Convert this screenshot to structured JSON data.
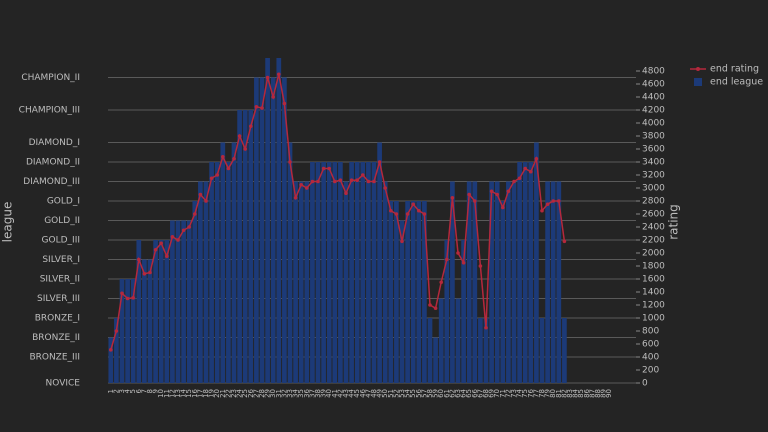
{
  "chart_data": {
    "type": "bar-line",
    "y_label": "league",
    "y2_label": "rating",
    "categories": [
      "1",
      "2",
      "3",
      "4",
      "5",
      "6",
      "7",
      "8",
      "9",
      "10",
      "11",
      "12",
      "13",
      "14",
      "15",
      "16",
      "17",
      "18",
      "19",
      "20",
      "21",
      "22",
      "23",
      "24",
      "25",
      "26",
      "27",
      "28",
      "29",
      "30",
      "31",
      "32",
      "33",
      "34",
      "35",
      "36",
      "37",
      "38",
      "39",
      "40",
      "41",
      "42",
      "43",
      "44",
      "45",
      "46",
      "47",
      "48",
      "49",
      "50",
      "51",
      "52",
      "53",
      "54",
      "55",
      "56",
      "57",
      "58",
      "59",
      "60",
      "61",
      "62",
      "63",
      "64",
      "65",
      "66",
      "67",
      "68",
      "69",
      "70",
      "71",
      "72",
      "73",
      "74",
      "75",
      "76",
      "77",
      "78",
      "79",
      "80",
      "81",
      "82",
      "83",
      "84",
      "85",
      "86",
      "87",
      "88",
      "89",
      "90"
    ],
    "series": [
      {
        "name": "end league",
        "kind": "bar",
        "color": "#1c3a78",
        "axis": "y",
        "values": [
          700,
          1000,
          1600,
          1600,
          1600,
          2200,
          1900,
          1900,
          2200,
          2200,
          2200,
          2500,
          2500,
          2500,
          2500,
          2800,
          3100,
          3100,
          3400,
          3400,
          3700,
          3400,
          3700,
          4200,
          4200,
          4200,
          4700,
          4700,
          5000,
          4700,
          5000,
          4700,
          3700,
          3100,
          3100,
          3100,
          3400,
          3400,
          3400,
          3400,
          3400,
          3400,
          3100,
          3400,
          3400,
          3400,
          3400,
          3400,
          3700,
          3100,
          2800,
          2800,
          2500,
          2800,
          2800,
          2800,
          2800,
          1000,
          700,
          1300,
          2200,
          3100,
          1300,
          2200,
          3100,
          3100,
          1000,
          1000,
          3100,
          3100,
          2800,
          3100,
          3100,
          3400,
          3400,
          3400,
          3700,
          1000,
          3100,
          3100,
          3100,
          1000,
          null,
          null,
          null,
          null,
          null,
          null,
          null,
          null
        ]
      },
      {
        "name": "end rating",
        "kind": "line",
        "color": "#b5283c",
        "axis": "y2",
        "values": [
          510,
          800,
          1380,
          1300,
          1310,
          1900,
          1680,
          1700,
          2050,
          2150,
          1950,
          2250,
          2200,
          2350,
          2400,
          2600,
          2900,
          2800,
          3150,
          3200,
          3480,
          3300,
          3450,
          3800,
          3600,
          3950,
          4250,
          4230,
          4700,
          4400,
          4750,
          4300,
          3400,
          2850,
          3050,
          3000,
          3100,
          3100,
          3300,
          3300,
          3100,
          3120,
          2920,
          3120,
          3120,
          3200,
          3100,
          3100,
          3400,
          3000,
          2650,
          2600,
          2180,
          2600,
          2750,
          2650,
          2600,
          1200,
          1150,
          1550,
          1900,
          2850,
          2000,
          1850,
          2900,
          2800,
          1800,
          850,
          2950,
          2900,
          2700,
          2950,
          3100,
          3150,
          3300,
          3250,
          3450,
          2650,
          2750,
          2800,
          2800,
          2180,
          null,
          null,
          null,
          null,
          null,
          null,
          null,
          null
        ]
      }
    ],
    "ylim": [
      0,
      5000
    ],
    "yticks": [
      {
        "value": 0,
        "label": "NOVICE"
      },
      {
        "value": 400,
        "label": "BRONZE_III"
      },
      {
        "value": 700,
        "label": "BRONZE_II"
      },
      {
        "value": 1000,
        "label": "BRONZE_I"
      },
      {
        "value": 1300,
        "label": "SILVER_III"
      },
      {
        "value": 1600,
        "label": "SILVER_II"
      },
      {
        "value": 1900,
        "label": "SILVER_I"
      },
      {
        "value": 2200,
        "label": "GOLD_III"
      },
      {
        "value": 2500,
        "label": "GOLD_II"
      },
      {
        "value": 2800,
        "label": "GOLD_I"
      },
      {
        "value": 3100,
        "label": "DIAMOND_III"
      },
      {
        "value": 3400,
        "label": "DIAMOND_II"
      },
      {
        "value": 3700,
        "label": "DIAMOND_I"
      },
      {
        "value": 4200,
        "label": "CHAMPION_III"
      },
      {
        "value": 4700,
        "label": "CHAMPION_II"
      }
    ],
    "y2lim": [
      0,
      5000
    ],
    "y2ticks": [
      0,
      200,
      400,
      600,
      800,
      1000,
      1200,
      1400,
      1600,
      1800,
      2000,
      2200,
      2400,
      2600,
      2800,
      3000,
      3200,
      3400,
      3600,
      3800,
      4000,
      4200,
      4400,
      4600,
      4800
    ],
    "grid": true
  }
}
